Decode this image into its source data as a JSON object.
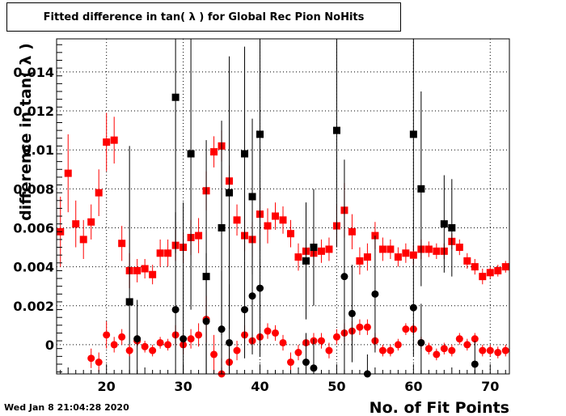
{
  "title": "Fitted difference in tan( λ ) for Global Rec Pion NoHits",
  "footer": "Wed Jan  8 21:04:28 2020",
  "chart_data": {
    "type": "scatter",
    "title": "Fitted difference in tan( λ ) for Global Rec Pion NoHits",
    "xlabel": "No. of Fit Points",
    "ylabel": "difference in tan( λ )",
    "xlim": [
      13.5,
      72.5
    ],
    "ylim": [
      -0.0015,
      0.0157
    ],
    "xticks": [
      20,
      30,
      40,
      50,
      60,
      70
    ],
    "yticks": [
      0,
      0.002,
      0.004,
      0.006,
      0.008,
      0.01,
      0.012,
      0.014
    ],
    "ytick_labels": [
      "0",
      "0.002",
      "0.004",
      "0.006",
      "0.008",
      "0.01",
      "0.012",
      "0.014"
    ],
    "grid": true,
    "series": [
      {
        "marker": "square",
        "color": "#ff0000",
        "points": [
          [
            14,
            0.0058,
            0.0018
          ],
          [
            15,
            0.0088,
            0.002
          ],
          [
            16,
            0.0062,
            0.0012
          ],
          [
            17,
            0.0054,
            0.001
          ],
          [
            18,
            0.0063,
            0.0009
          ],
          [
            19,
            0.0078,
            0.0012
          ],
          [
            20,
            0.0104,
            0.0015
          ],
          [
            21,
            0.0105,
            0.0012
          ],
          [
            22,
            0.0052,
            0.0009
          ],
          [
            23,
            0.0038,
            0.0009
          ],
          [
            24,
            0.0038,
            0.0006
          ],
          [
            25,
            0.0039,
            0.0005
          ],
          [
            26,
            0.0036,
            0.0005
          ],
          [
            27,
            0.0047,
            0.0007
          ],
          [
            28,
            0.0047,
            0.0007
          ],
          [
            29,
            0.0051,
            0.0008
          ],
          [
            30,
            0.005,
            0.0008
          ],
          [
            31,
            0.0055,
            0.0009
          ],
          [
            32,
            0.0056,
            0.0009
          ],
          [
            33,
            0.0079,
            0.001
          ],
          [
            34,
            0.0099,
            0.0008
          ],
          [
            35,
            0.0102,
            0.0008
          ],
          [
            36,
            0.0084,
            0.0008
          ],
          [
            37,
            0.0064,
            0.0008
          ],
          [
            38,
            0.0056,
            0.0008
          ],
          [
            39,
            0.0054,
            0.0009
          ],
          [
            40,
            0.0067,
            0.0011
          ],
          [
            41,
            0.0061,
            0.0009
          ],
          [
            42,
            0.0066,
            0.0007
          ],
          [
            43,
            0.0064,
            0.0007
          ],
          [
            44,
            0.0057,
            0.0007
          ],
          [
            45,
            0.0045,
            0.0007
          ],
          [
            46,
            0.0048,
            0.0006
          ],
          [
            47,
            0.0047,
            0.0006
          ],
          [
            48,
            0.0048,
            0.0006
          ],
          [
            49,
            0.0049,
            0.0006
          ],
          [
            50,
            0.0061,
            0.0011
          ],
          [
            51,
            0.0069,
            0.0014
          ],
          [
            52,
            0.0058,
            0.0009
          ],
          [
            53,
            0.0043,
            0.0007
          ],
          [
            54,
            0.0045,
            0.0007
          ],
          [
            55,
            0.0056,
            0.0007
          ],
          [
            56,
            0.0049,
            0.0006
          ],
          [
            57,
            0.0049,
            0.0005
          ],
          [
            58,
            0.0045,
            0.0005
          ],
          [
            59,
            0.0047,
            0.0005
          ],
          [
            60,
            0.0046,
            0.0005
          ],
          [
            61,
            0.0049,
            0.0005
          ],
          [
            62,
            0.0049,
            0.0004
          ],
          [
            63,
            0.0048,
            0.0004
          ],
          [
            64,
            0.0048,
            0.0004
          ],
          [
            65,
            0.0053,
            0.0004
          ],
          [
            66,
            0.005,
            0.0004
          ],
          [
            67,
            0.0043,
            0.0004
          ],
          [
            68,
            0.004,
            0.0004
          ],
          [
            69,
            0.0035,
            0.0004
          ],
          [
            70,
            0.0037,
            0.0003
          ],
          [
            71,
            0.0038,
            0.0003
          ],
          [
            72,
            0.004,
            0.0003
          ]
        ]
      },
      {
        "marker": "square",
        "color": "#000000",
        "points": [
          [
            23,
            0.0022,
            0.008
          ],
          [
            29,
            0.0127,
            0.008
          ],
          [
            31,
            0.0098,
            0.008
          ],
          [
            33,
            0.0035,
            0.007
          ],
          [
            35,
            0.006,
            0.0055
          ],
          [
            36,
            0.0078,
            0.007
          ],
          [
            38,
            0.0098,
            0.0055
          ],
          [
            39,
            0.0076,
            0.004
          ],
          [
            40,
            0.0108,
            0.006
          ],
          [
            46,
            0.0043,
            0.003
          ],
          [
            47,
            0.005,
            0.003
          ],
          [
            50,
            0.011,
            0.006
          ],
          [
            60,
            0.0108,
            0.006
          ],
          [
            61,
            0.008,
            0.005
          ],
          [
            64,
            0.0062,
            0.0025
          ],
          [
            65,
            0.006,
            0.0025
          ]
        ]
      },
      {
        "marker": "circle",
        "color": "#ff0000",
        "points": [
          [
            18,
            -0.0007,
            0.0005
          ],
          [
            19,
            -0.0009,
            0.0005
          ],
          [
            20,
            0.0005,
            0.0007
          ],
          [
            21,
            0.0,
            0.0004
          ],
          [
            22,
            0.0004,
            0.0004
          ],
          [
            23,
            -0.0003,
            0.0003
          ],
          [
            24,
            0.0002,
            0.0003
          ],
          [
            25,
            -0.0001,
            0.0003
          ],
          [
            26,
            -0.0003,
            0.0003
          ],
          [
            27,
            0.0001,
            0.0003
          ],
          [
            28,
            0.0,
            0.0003
          ],
          [
            29,
            0.0005,
            0.0005
          ],
          [
            30,
            0.0,
            0.0005
          ],
          [
            31,
            0.0003,
            0.0005
          ],
          [
            32,
            0.0005,
            0.0006
          ],
          [
            33,
            0.0013,
            0.0012
          ],
          [
            34,
            -0.0005,
            0.001
          ],
          [
            35,
            -0.0015,
            0.0008
          ],
          [
            36,
            -0.0009,
            0.0007
          ],
          [
            37,
            -0.0003,
            0.0005
          ],
          [
            38,
            0.0005,
            0.0005
          ],
          [
            39,
            0.0002,
            0.0004
          ],
          [
            40,
            0.0004,
            0.0004
          ],
          [
            41,
            0.0007,
            0.0004
          ],
          [
            42,
            0.0006,
            0.0004
          ],
          [
            43,
            0.0001,
            0.0004
          ],
          [
            44,
            -0.0009,
            0.0005
          ],
          [
            45,
            -0.0004,
            0.0004
          ],
          [
            46,
            0.0001,
            0.0004
          ],
          [
            47,
            0.0002,
            0.0004
          ],
          [
            48,
            0.0002,
            0.0004
          ],
          [
            49,
            -0.0003,
            0.0004
          ],
          [
            50,
            0.0004,
            0.0004
          ],
          [
            51,
            0.0006,
            0.0005
          ],
          [
            52,
            0.0007,
            0.0005
          ],
          [
            53,
            0.0009,
            0.0004
          ],
          [
            54,
            0.0009,
            0.0004
          ],
          [
            55,
            0.0002,
            0.0004
          ],
          [
            56,
            -0.0003,
            0.0003
          ],
          [
            57,
            -0.0003,
            0.0003
          ],
          [
            58,
            0.0,
            0.0003
          ],
          [
            59,
            0.0008,
            0.0003
          ],
          [
            60,
            0.0008,
            0.0003
          ],
          [
            61,
            0.0001,
            0.0003
          ],
          [
            62,
            -0.0002,
            0.0003
          ],
          [
            63,
            -0.0005,
            0.0003
          ],
          [
            64,
            -0.0002,
            0.0003
          ],
          [
            65,
            -0.0003,
            0.0003
          ],
          [
            66,
            0.0003,
            0.0003
          ],
          [
            67,
            0.0,
            0.0003
          ],
          [
            68,
            0.0003,
            0.0003
          ],
          [
            69,
            -0.0003,
            0.0003
          ],
          [
            70,
            -0.0003,
            0.0003
          ],
          [
            71,
            -0.0004,
            0.0003
          ],
          [
            72,
            -0.0003,
            0.0003
          ]
        ]
      },
      {
        "marker": "circle",
        "color": "#000000",
        "points": [
          [
            24,
            0.0003,
            0.002
          ],
          [
            29,
            0.0018,
            0.005
          ],
          [
            30,
            0.0003,
            0.007
          ],
          [
            33,
            0.0012,
            0.0035
          ],
          [
            35,
            0.0008,
            0.003
          ],
          [
            36,
            0.0001,
            0.003
          ],
          [
            38,
            0.0018,
            0.0025
          ],
          [
            39,
            0.0025,
            0.003
          ],
          [
            40,
            0.0029,
            0.0035
          ],
          [
            46,
            -0.0009,
            0.0015
          ],
          [
            47,
            -0.0012,
            0.0015
          ],
          [
            51,
            0.0035,
            0.006
          ],
          [
            52,
            0.0016,
            0.0025
          ],
          [
            54,
            -0.0015,
            0.001
          ],
          [
            55,
            0.0026,
            0.003
          ],
          [
            60,
            0.0019,
            0.0025
          ],
          [
            61,
            0.0001,
            0.002
          ],
          [
            68,
            -0.001,
            0.0012
          ]
        ]
      }
    ]
  }
}
